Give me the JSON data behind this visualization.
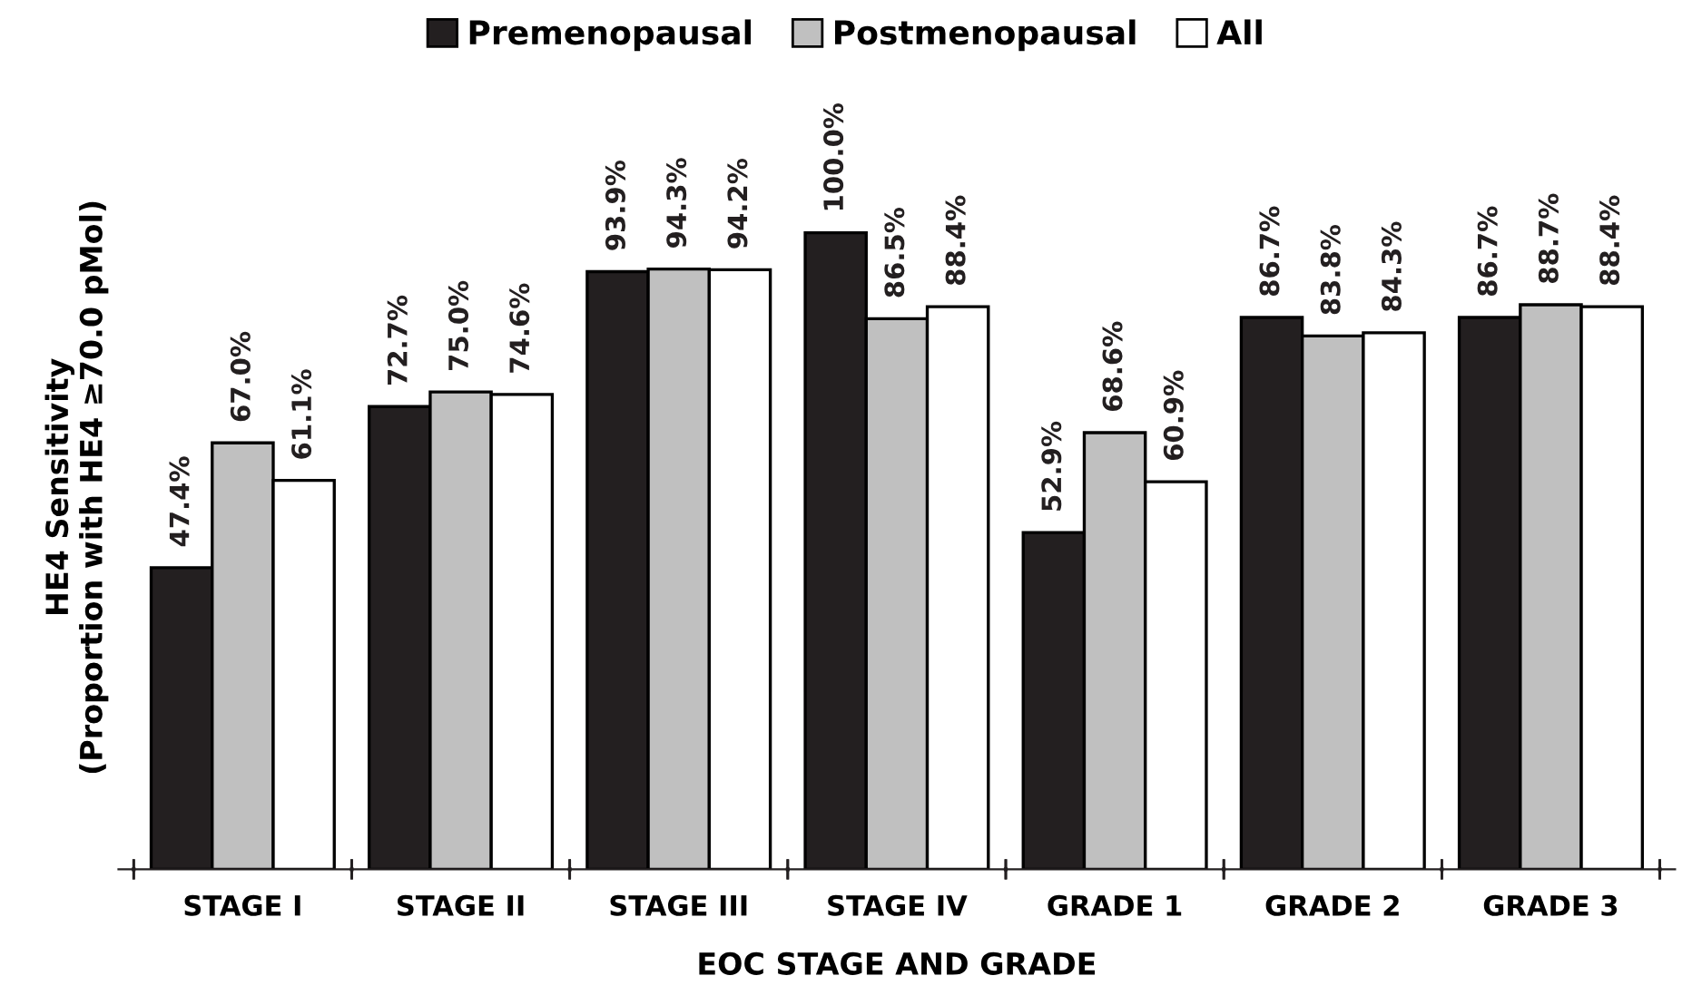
{
  "chart_data": {
    "type": "bar",
    "xlabel": "EOC STAGE AND GRADE",
    "ylabel": "HE4 Sensitivity\n(Proportion with HE4 ≥70.0 pMol)",
    "categories": [
      "STAGE I",
      "STAGE II",
      "STAGE III",
      "STAGE IV",
      "GRADE 1",
      "GRADE 2",
      "GRADE 3"
    ],
    "series": [
      {
        "name": "Premenopausal",
        "color": "#231f20",
        "values": [
          47.4,
          72.7,
          93.9,
          100.0,
          52.9,
          86.7,
          86.7
        ],
        "value_labels": [
          "47.4%",
          "72.7%",
          "93.9%",
          "100.0%",
          "52.9%",
          "86.7%",
          "86.7%"
        ]
      },
      {
        "name": "Postmenopausal",
        "color": "#c0c0c0",
        "values": [
          67.0,
          75.0,
          94.3,
          86.5,
          68.6,
          83.8,
          88.7
        ],
        "value_labels": [
          "67.0%",
          "75.0%",
          "94.3%",
          "86.5%",
          "68.6%",
          "83.8%",
          "88.7%"
        ]
      },
      {
        "name": "All",
        "color": "#ffffff",
        "values": [
          61.1,
          74.6,
          94.2,
          88.4,
          60.9,
          84.3,
          88.4
        ],
        "value_labels": [
          "61.1%",
          "74.6%",
          "94.2%",
          "88.4%",
          "60.9%",
          "84.3%",
          "88.4%"
        ]
      }
    ],
    "legend": "top",
    "grid": false
  }
}
